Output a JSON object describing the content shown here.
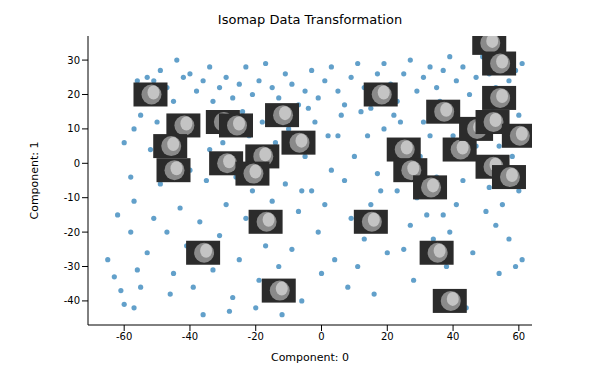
{
  "chart_data": {
    "type": "scatter",
    "title": "Isomap Data Transformation",
    "x_label": "Component: 0",
    "y_label": "Component: 1",
    "xlim": [
      -71,
      64
    ],
    "xticks": [
      -60,
      -40,
      -20,
      0,
      20,
      40,
      60
    ],
    "ylim": [
      -47,
      37
    ],
    "yticks": [
      -40,
      -30,
      -20,
      -10,
      0,
      10,
      20,
      30
    ],
    "grid": false,
    "series": [
      {
        "color": "#1f77b4",
        "marker": "circle",
        "x": [
          -65,
          -63,
          -61,
          -60,
          -57,
          -56,
          -58,
          -57,
          -58,
          -57,
          -55,
          -56,
          -53,
          -51,
          -49,
          -47,
          -45,
          -44,
          -42,
          -40,
          -38,
          -36,
          -34,
          -33,
          -31,
          -29,
          -27,
          -25,
          -23,
          -21,
          -19,
          -17,
          -15,
          -13,
          -11,
          -9,
          -7,
          -5,
          -3,
          -1,
          1,
          3,
          5,
          7,
          9,
          11,
          13,
          15,
          17,
          19,
          21,
          23,
          25,
          27,
          29,
          31,
          33,
          35,
          37,
          39,
          41,
          43,
          45,
          47,
          49,
          51,
          53,
          55,
          57,
          59,
          61,
          60,
          58,
          56,
          54,
          58,
          60,
          61,
          59,
          57,
          55,
          53,
          51,
          49,
          47,
          45,
          43,
          41,
          39,
          37,
          35,
          33,
          31,
          29,
          27,
          25,
          23,
          21,
          19,
          17,
          15,
          13,
          11,
          9,
          7,
          5,
          3,
          1,
          -1,
          -3,
          -5,
          -7,
          -9,
          -11,
          -13,
          -15,
          -17,
          -19,
          -21,
          -23,
          -25,
          -27,
          -29,
          -31,
          -33,
          -35,
          -37,
          -39,
          -41,
          -43,
          -45,
          -47,
          -49,
          -51,
          -53,
          -55,
          -52,
          -50,
          -48,
          -44,
          -40,
          -38,
          -34,
          -30,
          -26,
          -22,
          -18,
          -14,
          -10,
          -6,
          -2,
          2,
          6,
          10,
          14,
          18,
          22,
          26,
          30,
          34,
          38,
          42,
          46,
          50,
          54,
          44,
          36,
          28,
          20,
          16,
          8,
          4,
          0,
          -6,
          -12,
          -20,
          -28,
          -36,
          48,
          52,
          44,
          40,
          36,
          32,
          24,
          12,
          -4,
          -24,
          -46,
          -60,
          -62
        ],
        "values": [
          -28,
          -33,
          -37,
          -41,
          -42,
          -31,
          -20,
          -11,
          -4,
          10,
          14,
          24,
          25,
          24,
          27,
          22,
          18,
          30,
          25,
          26,
          21,
          24,
          28,
          18,
          22,
          25,
          19,
          23,
          28,
          20,
          24,
          29,
          22,
          19,
          26,
          23,
          17,
          21,
          27,
          19,
          24,
          28,
          21,
          17,
          25,
          29,
          22,
          16,
          26,
          29,
          23,
          18,
          26,
          30,
          21,
          25,
          28,
          22,
          27,
          31,
          24,
          28,
          20,
          25,
          31,
          26,
          22,
          30,
          24,
          27,
          29,
          14,
          18,
          13,
          5,
          2,
          -8,
          -28,
          -30,
          -22,
          -12,
          -18,
          -7,
          -2,
          5,
          12,
          -5,
          -12,
          -20,
          -15,
          -4,
          8,
          12,
          -10,
          -18,
          -25,
          -8,
          4,
          10,
          -3,
          -12,
          -22,
          -30,
          -16,
          -5,
          8,
          -2,
          -12,
          -20,
          -8,
          2,
          -14,
          -25,
          -6,
          -30,
          -11,
          -24,
          -34,
          -8,
          -16,
          -28,
          -39,
          -12,
          -21,
          -31,
          -5,
          -17,
          -36,
          -24,
          -13,
          -32,
          -20,
          -6,
          -16,
          -26,
          -36,
          4,
          12,
          0,
          6,
          -2,
          10,
          4,
          6,
          -4,
          8,
          12,
          6,
          10,
          -8,
          12,
          8,
          14,
          2,
          8,
          -8,
          14,
          -2,
          2,
          -22,
          -30,
          -38,
          -26,
          -14,
          -32,
          -42,
          -40,
          -34,
          -26,
          -38,
          -36,
          -28,
          -32,
          -40,
          -44,
          -42,
          -43,
          -44,
          10,
          15,
          2,
          8,
          18,
          -15,
          12,
          15,
          16,
          15,
          -38,
          6,
          -15
        ]
      },
      {
        "color": "#2b2b2b",
        "marker": "image",
        "x": [
          -52,
          -42,
          -46,
          -45,
          -30,
          -26,
          -12,
          -29,
          -18,
          -21,
          -7,
          -17,
          -36,
          -13,
          18,
          15,
          25,
          27,
          33,
          37,
          42,
          35,
          39,
          51,
          54,
          54,
          47,
          52,
          60,
          52,
          57
        ],
        "values": [
          20,
          11,
          5,
          -2,
          12,
          11,
          14,
          0,
          2,
          -3,
          6,
          -17,
          -26,
          -37,
          20,
          -17,
          4,
          -2,
          -7,
          15,
          4,
          -26,
          -40,
          35,
          29,
          19,
          10,
          12,
          8,
          -1,
          -4
        ]
      }
    ]
  }
}
